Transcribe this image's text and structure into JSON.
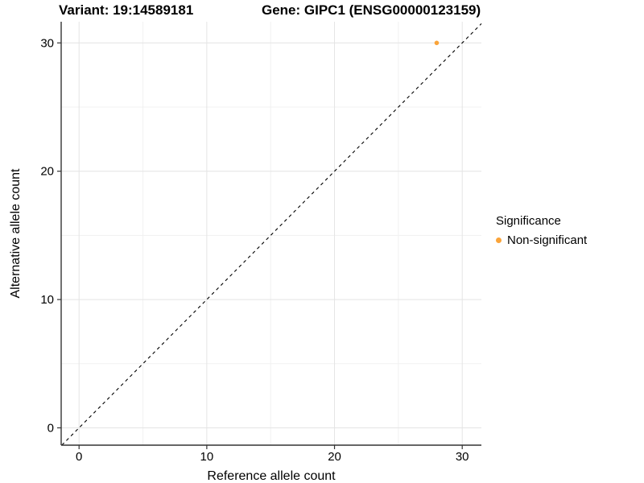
{
  "header": {
    "variant_title": "Variant: 19:14589181",
    "gene_title": "Gene: GIPC1 (ENSG00000123159)"
  },
  "colors": {
    "point_nonsignificant": "#FAA43A",
    "grid_major": "#e4e4e4",
    "grid_minor": "#f1f1f1",
    "axis_line": "#333333",
    "text": "#000000",
    "background": "#ffffff"
  },
  "chart_data": {
    "type": "scatter",
    "title": "Variant: 19:14589181    Gene: GIPC1 (ENSG00000123159)",
    "xlabel": "Reference allele count",
    "ylabel": "Alternative allele count",
    "xlim": [
      -1.4,
      31.5
    ],
    "ylim": [
      -1.35,
      31.65
    ],
    "x_ticks": [
      0,
      10,
      20,
      30
    ],
    "y_ticks": [
      0,
      10,
      20,
      30
    ],
    "x_minor_ticks": [
      5,
      15,
      25
    ],
    "y_minor_ticks": [
      5,
      15,
      25
    ],
    "grid": true,
    "identity_line": {
      "slope": 1,
      "intercept": 0,
      "style": "dashed",
      "color": "#000000"
    },
    "series": [
      {
        "name": "Non-significant",
        "color": "#FAA43A",
        "points": [
          {
            "x": 28,
            "y": 30
          }
        ]
      }
    ],
    "legend": {
      "title": "Significance",
      "position": "right",
      "entries": [
        {
          "label": "Non-significant",
          "color": "#FAA43A"
        }
      ]
    }
  }
}
